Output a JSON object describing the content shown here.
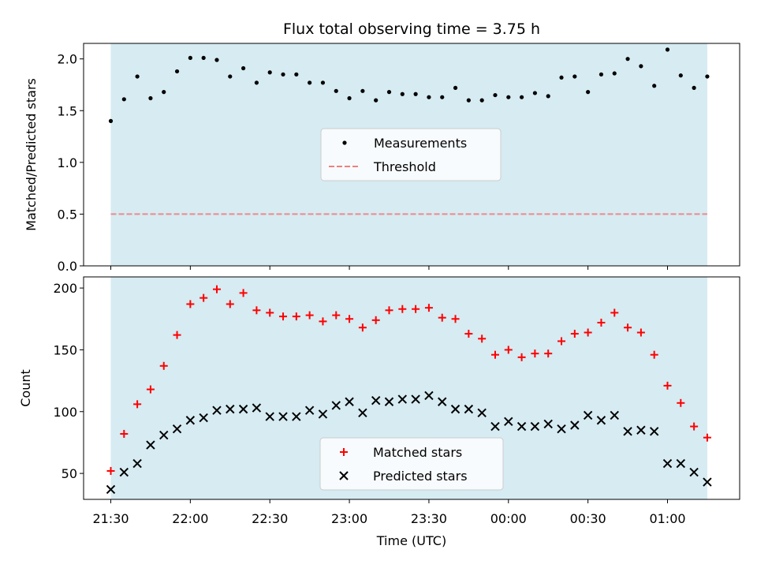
{
  "chart_data": [
    {
      "type": "scatter",
      "title": "Flux total observing time = 3.75 h",
      "xlabel": "",
      "ylabel": "Matched/Predicted stars",
      "ylim": [
        0,
        2.15
      ],
      "yticks": [
        "0.0",
        "0.5",
        "1.0",
        "1.5",
        "2.0"
      ],
      "xticks_shown": false,
      "legend_position": "center",
      "shaded_span": {
        "from": "21:30",
        "to": "01:15",
        "color": "#add8e6"
      },
      "threshold": {
        "name": "Threshold",
        "value": 0.5,
        "color": "#f08080",
        "style": "dashed"
      },
      "series": [
        {
          "name": "Measurements",
          "marker": "dot",
          "color": "#000000",
          "x": [
            "21:30",
            "21:35",
            "21:40",
            "21:45",
            "21:50",
            "21:55",
            "22:00",
            "22:05",
            "22:10",
            "22:15",
            "22:20",
            "22:25",
            "22:30",
            "22:35",
            "22:40",
            "22:45",
            "22:50",
            "22:55",
            "23:00",
            "23:05",
            "23:10",
            "23:15",
            "23:20",
            "23:25",
            "23:30",
            "23:35",
            "23:40",
            "23:45",
            "23:50",
            "23:55",
            "00:00",
            "00:05",
            "00:10",
            "00:15",
            "00:20",
            "00:25",
            "00:30",
            "00:35",
            "00:40",
            "00:45",
            "00:50",
            "00:55",
            "01:00",
            "01:05",
            "01:10",
            "01:15"
          ],
          "values": [
            1.4,
            1.61,
            1.83,
            1.62,
            1.68,
            1.88,
            2.01,
            2.01,
            1.99,
            1.83,
            1.91,
            1.77,
            1.87,
            1.85,
            1.85,
            1.77,
            1.77,
            1.69,
            1.62,
            1.69,
            1.6,
            1.68,
            1.66,
            1.66,
            1.63,
            1.63,
            1.72,
            1.6,
            1.6,
            1.65,
            1.63,
            1.63,
            1.67,
            1.64,
            1.82,
            1.83,
            1.68,
            1.85,
            1.86,
            2.0,
            1.93,
            1.74,
            2.09,
            1.84,
            1.72,
            1.83
          ]
        }
      ]
    },
    {
      "type": "scatter",
      "title": "",
      "xlabel": "Time (UTC)",
      "ylabel": "Count",
      "ylim": [
        29,
        209
      ],
      "yticks": [
        "50",
        "100",
        "150",
        "200"
      ],
      "xticks": [
        "21:30",
        "22:00",
        "22:30",
        "23:00",
        "23:30",
        "00:00",
        "00:30",
        "01:00"
      ],
      "legend_position": "lower center",
      "shaded_span": {
        "from": "21:30",
        "to": "01:15",
        "color": "#add8e6"
      },
      "series": [
        {
          "name": "Matched stars",
          "marker": "plus",
          "color": "#ff0000",
          "x": [
            "21:30",
            "21:35",
            "21:40",
            "21:45",
            "21:50",
            "21:55",
            "22:00",
            "22:05",
            "22:10",
            "22:15",
            "22:20",
            "22:25",
            "22:30",
            "22:35",
            "22:40",
            "22:45",
            "22:50",
            "22:55",
            "23:00",
            "23:05",
            "23:10",
            "23:15",
            "23:20",
            "23:25",
            "23:30",
            "23:35",
            "23:40",
            "23:45",
            "23:50",
            "23:55",
            "00:00",
            "00:05",
            "00:10",
            "00:15",
            "00:20",
            "00:25",
            "00:30",
            "00:35",
            "00:40",
            "00:45",
            "00:50",
            "00:55",
            "01:00",
            "01:05",
            "01:10",
            "01:15"
          ],
          "values": [
            52,
            82,
            106,
            118,
            137,
            162,
            187,
            192,
            199,
            187,
            196,
            182,
            180,
            177,
            177,
            178,
            173,
            178,
            175,
            168,
            174,
            182,
            183,
            183,
            184,
            176,
            175,
            163,
            159,
            146,
            150,
            144,
            147,
            147,
            157,
            163,
            164,
            172,
            180,
            168,
            164,
            146,
            121,
            107,
            88,
            79
          ]
        },
        {
          "name": "Predicted stars",
          "marker": "x",
          "color": "#000000",
          "x": [
            "21:30",
            "21:35",
            "21:40",
            "21:45",
            "21:50",
            "21:55",
            "22:00",
            "22:05",
            "22:10",
            "22:15",
            "22:20",
            "22:25",
            "22:30",
            "22:35",
            "22:40",
            "22:45",
            "22:50",
            "22:55",
            "23:00",
            "23:05",
            "23:10",
            "23:15",
            "23:20",
            "23:25",
            "23:30",
            "23:35",
            "23:40",
            "23:45",
            "23:50",
            "23:55",
            "00:00",
            "00:05",
            "00:10",
            "00:15",
            "00:20",
            "00:25",
            "00:30",
            "00:35",
            "00:40",
            "00:45",
            "00:50",
            "00:55",
            "01:00",
            "01:05",
            "01:10",
            "01:15"
          ],
          "values": [
            37,
            51,
            58,
            73,
            81,
            86,
            93,
            95,
            101,
            102,
            102,
            103,
            96,
            96,
            96,
            101,
            98,
            105,
            108,
            99,
            109,
            108,
            110,
            110,
            113,
            108,
            102,
            102,
            99,
            88,
            92,
            88,
            88,
            90,
            86,
            89,
            97,
            93,
            97,
            84,
            85,
            84,
            58,
            58,
            51,
            43
          ]
        }
      ]
    }
  ]
}
